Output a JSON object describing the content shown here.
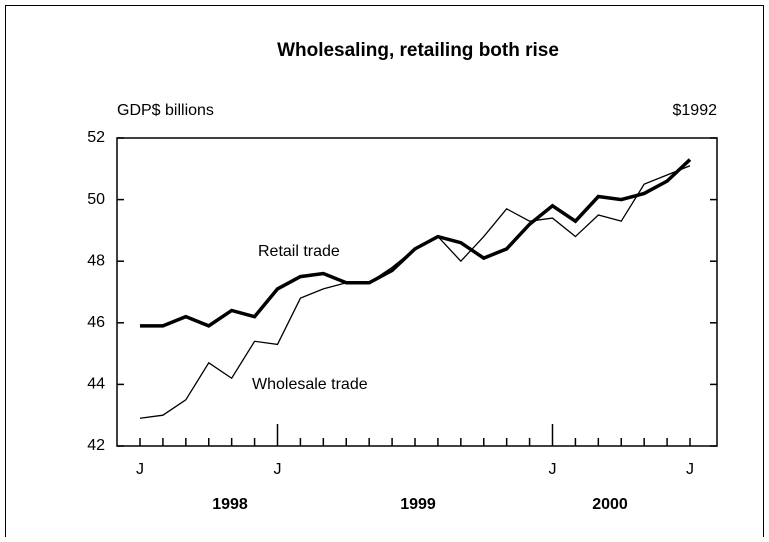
{
  "chart_data": {
    "type": "line",
    "title": "Wholesaling, retailing both rise",
    "y_axis_label": "GDP$ billions",
    "units_note": "$1992",
    "categories": [
      "J",
      null,
      null,
      null,
      null,
      null,
      "J",
      null,
      null,
      null,
      null,
      null,
      null,
      null,
      null,
      null,
      null,
      null,
      "J",
      null,
      null,
      null,
      null,
      null,
      "J"
    ],
    "year_labels": [
      "1998",
      "1999",
      "2000"
    ],
    "series": [
      {
        "name": "Retail trade",
        "color": "#000000",
        "width": 3.5,
        "values": [
          45.9,
          45.9,
          46.2,
          45.9,
          46.4,
          46.2,
          47.1,
          47.5,
          47.6,
          47.3,
          47.3,
          47.7,
          48.4,
          48.8,
          48.6,
          48.1,
          48.4,
          49.2,
          49.8,
          49.3,
          50.1,
          50.0,
          50.2,
          50.6,
          51.3
        ]
      },
      {
        "name": "Wholesale trade",
        "color": "#000000",
        "width": 1.3,
        "values": [
          42.9,
          43.0,
          43.5,
          44.7,
          44.2,
          45.4,
          45.3,
          46.8,
          47.1,
          47.3,
          47.3,
          47.8,
          48.4,
          48.8,
          48.0,
          48.8,
          49.7,
          49.3,
          49.4,
          48.8,
          49.5,
          49.3,
          50.5,
          50.8,
          51.1
        ]
      }
    ],
    "ylim": [
      42,
      52
    ],
    "yticks": [
      42,
      44,
      46,
      48,
      50,
      52
    ],
    "grid": false
  }
}
